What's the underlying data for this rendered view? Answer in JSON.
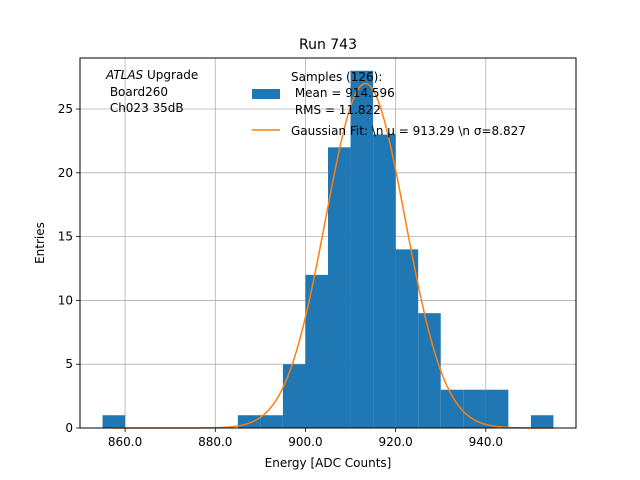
{
  "chart_data": {
    "type": "bar",
    "title": "Run 743",
    "xlabel": "Energy [ADC Counts]",
    "ylabel": "Entries",
    "xlim": [
      850,
      960
    ],
    "ylim": [
      0,
      29
    ],
    "grid": true,
    "x_ticks": [
      860,
      880,
      900,
      920,
      940
    ],
    "x_tick_labels": [
      "860.0",
      "880.0",
      "900.0",
      "920.0",
      "940.0"
    ],
    "y_ticks": [
      0,
      5,
      10,
      15,
      20,
      25
    ],
    "y_tick_labels": [
      "0",
      "5",
      "10",
      "15",
      "20",
      "25"
    ],
    "histogram": {
      "bin_edges": [
        855,
        860,
        865,
        870,
        875,
        880,
        885,
        890,
        895,
        900,
        905,
        910,
        915,
        920,
        925,
        930,
        935,
        940,
        945,
        950,
        955
      ],
      "counts": [
        1,
        0,
        0,
        0,
        0,
        0,
        1,
        1,
        5,
        12,
        22,
        28,
        23,
        14,
        9,
        3,
        3,
        3,
        0,
        1
      ],
      "color": "#1f77b4"
    },
    "fit": {
      "type": "gaussian",
      "mu": 913.29,
      "sigma": 8.827,
      "amplitude": 27,
      "x_range": [
        857,
        955
      ],
      "color": "#ff7f0e"
    },
    "legend": {
      "placement": "top-right",
      "entries": [
        {
          "lines": [
            "Samples (126):",
            " Mean = 914.596",
            " RMS = 11.822"
          ],
          "kind": "patch",
          "color": "#1f77b4"
        },
        {
          "lines": [
            "Gaussian Fit: \\n μ = 913.29 \\n σ=8.827"
          ],
          "kind": "line",
          "color": "#ff7f0e"
        }
      ]
    },
    "annotation": {
      "italic": "ATLAS",
      "rest": " Upgrade",
      "line2": " Board260",
      "line3": " Ch023 35dB"
    }
  }
}
